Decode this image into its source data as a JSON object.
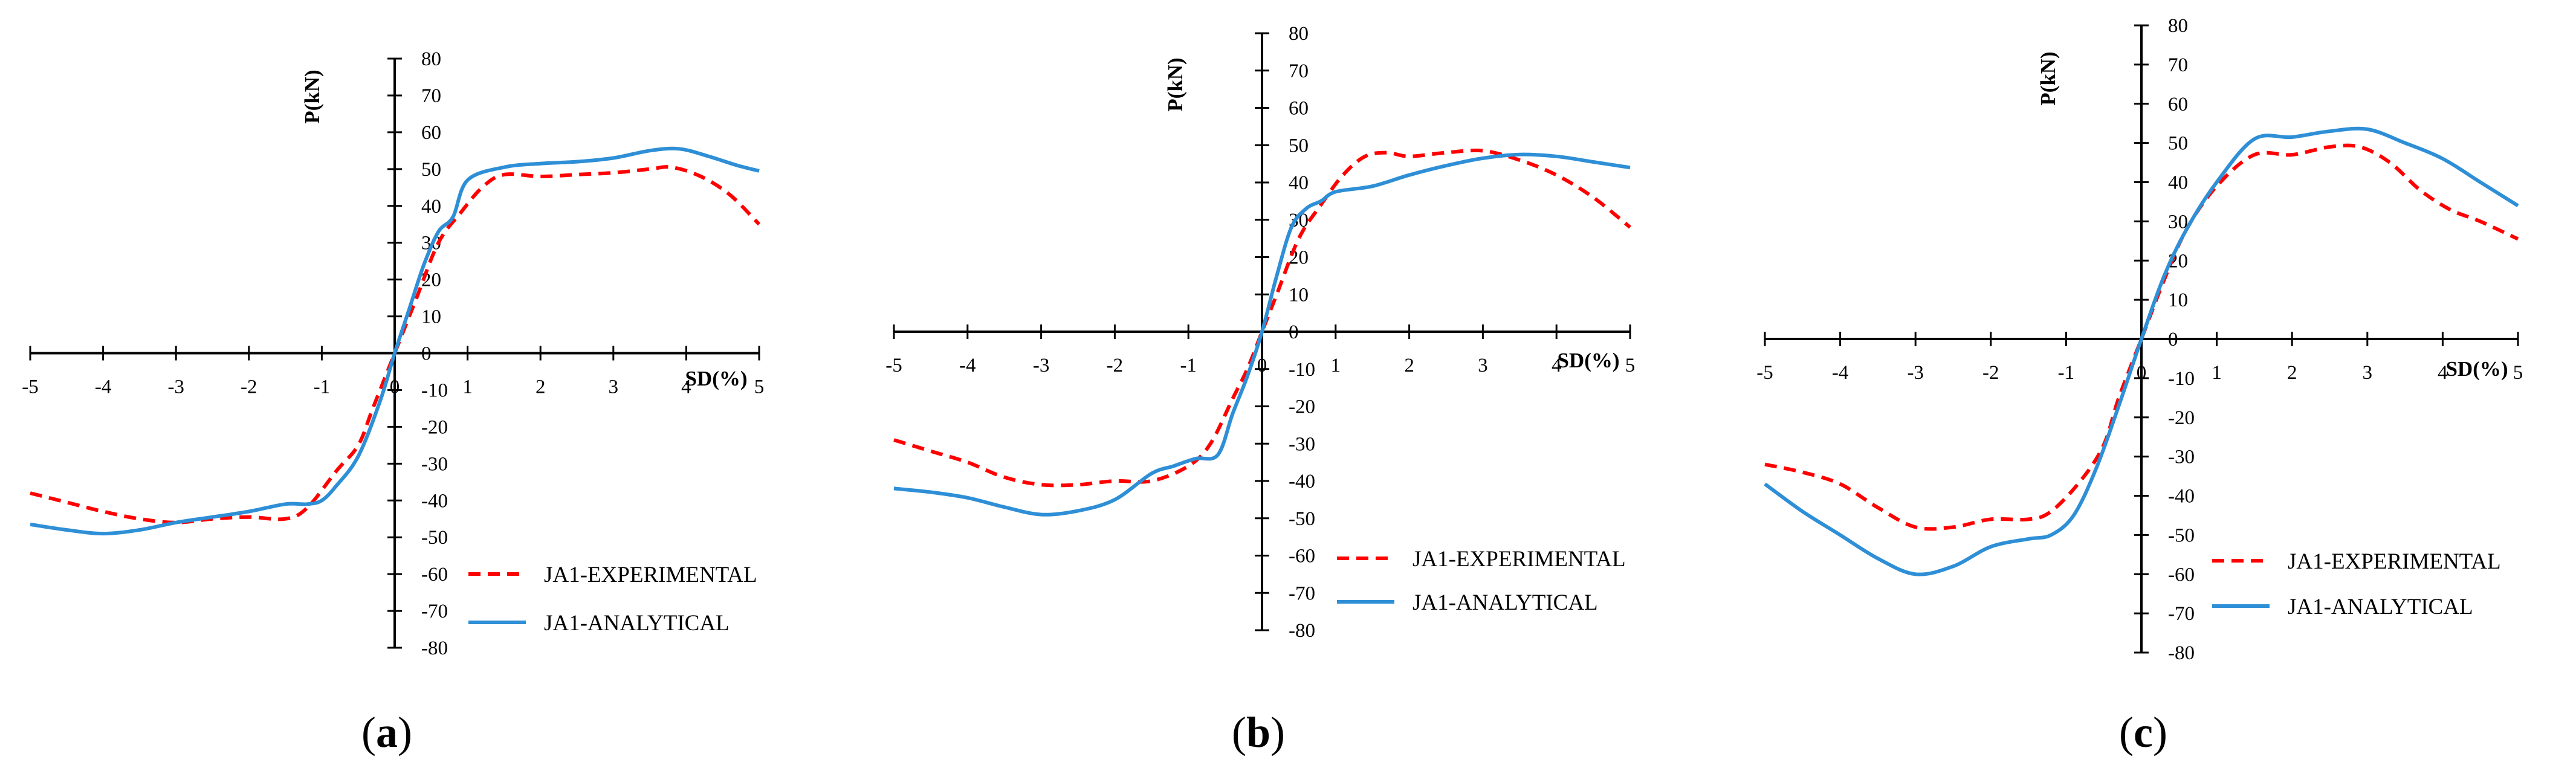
{
  "colors": {
    "experimental": "#ff0000",
    "analytical": "#2e8fd6",
    "axis": "#000000"
  },
  "chart_data": [
    {
      "type": "line",
      "panel": "a",
      "caption": {
        "open": "(",
        "letter": "a",
        "close": ")"
      },
      "xlabel": "SD(%)",
      "ylabel": "P(kN)",
      "xlim": [
        -5,
        5
      ],
      "ylim": [
        -80,
        80
      ],
      "xticks": [
        -5,
        -4,
        -3,
        -2,
        -1,
        0,
        1,
        2,
        3,
        4,
        5
      ],
      "yticks": [
        -80,
        -70,
        -60,
        -50,
        -40,
        -30,
        -20,
        -10,
        0,
        10,
        20,
        30,
        40,
        50,
        60,
        70,
        80
      ],
      "series": [
        {
          "name": "JA1-EXPERIMENTAL",
          "style": "dashed",
          "x": [
            -5,
            -4.5,
            -4,
            -3.5,
            -3,
            -2.5,
            -2,
            -1.5,
            -1.2,
            -0.8,
            -0.5,
            -0.3,
            0,
            0.3,
            0.6,
            0.9,
            1.2,
            1.5,
            2,
            2.5,
            3,
            3.5,
            3.8,
            4.2,
            4.6,
            5
          ],
          "y": [
            -38,
            -40.5,
            -43,
            -45,
            -46,
            -45,
            -44.5,
            -45,
            -42,
            -32,
            -25,
            -15,
            0,
            15,
            30,
            38,
            45,
            48.5,
            48,
            48.5,
            49,
            50,
            50.5,
            48,
            43,
            35
          ]
        },
        {
          "name": "JA1-ANALYTICAL",
          "style": "solid",
          "x": [
            -5,
            -4.5,
            -4,
            -3.5,
            -3,
            -2.5,
            -2,
            -1.5,
            -1.2,
            -1,
            -0.8,
            -0.5,
            -0.2,
            0,
            0.2,
            0.4,
            0.6,
            0.8,
            1,
            1.5,
            2,
            2.5,
            3,
            3.5,
            3.9,
            4.3,
            4.7,
            5
          ],
          "y": [
            -46.5,
            -48,
            -49,
            -48,
            -46,
            -44.5,
            -43,
            -41,
            -41,
            -40,
            -36,
            -28,
            -13,
            0,
            12,
            24,
            33,
            37,
            47,
            50.5,
            51.5,
            52,
            53,
            55,
            55.5,
            53.5,
            51,
            49.5
          ]
        }
      ]
    },
    {
      "type": "line",
      "panel": "b",
      "caption": {
        "open": "(",
        "letter": "b",
        "close": ")"
      },
      "xlabel": "SD(%)",
      "ylabel": "P(kN)",
      "xlim": [
        -5,
        5
      ],
      "ylim": [
        -80,
        80
      ],
      "xticks": [
        -5,
        -4,
        -3,
        -2,
        -1,
        0,
        1,
        2,
        3,
        4,
        5
      ],
      "yticks": [
        -80,
        -70,
        -60,
        -50,
        -40,
        -30,
        -20,
        -10,
        0,
        10,
        20,
        30,
        40,
        50,
        60,
        70,
        80
      ],
      "series": [
        {
          "name": "JA1-EXPERIMENTAL",
          "style": "dashed",
          "x": [
            -5,
            -4.5,
            -4,
            -3.5,
            -3,
            -2.5,
            -2,
            -1.5,
            -1,
            -0.7,
            -0.4,
            -0.2,
            0,
            0.2,
            0.5,
            0.8,
            1.1,
            1.4,
            1.7,
            2,
            2.5,
            3,
            3.5,
            4,
            4.5,
            5
          ],
          "y": [
            -29,
            -32,
            -35,
            -39,
            -41,
            -41,
            -40,
            -40,
            -36,
            -30,
            -18,
            -10,
            0,
            10,
            25,
            34,
            42,
            47,
            48,
            47,
            48,
            48.5,
            46,
            42,
            36,
            28
          ]
        },
        {
          "name": "JA1-ANALYTICAL",
          "style": "solid",
          "x": [
            -5,
            -4.5,
            -4,
            -3.5,
            -3,
            -2.5,
            -2,
            -1.5,
            -1.2,
            -0.9,
            -0.6,
            -0.4,
            -0.2,
            0,
            0.2,
            0.4,
            0.6,
            0.8,
            1.0,
            1.5,
            2,
            2.5,
            3,
            3.5,
            4,
            4.5,
            5
          ],
          "y": [
            -42,
            -43,
            -44.5,
            -47,
            -49,
            -48,
            -45,
            -38,
            -36,
            -34,
            -33,
            -22,
            -12,
            0,
            15,
            28,
            33,
            35,
            37.5,
            39,
            42,
            44.5,
            46.5,
            47.5,
            47,
            45.5,
            44
          ]
        }
      ]
    },
    {
      "type": "line",
      "panel": "c",
      "caption": {
        "open": "(",
        "letter": "c",
        "close": ")"
      },
      "xlabel": "SD(%)",
      "ylabel": "P(kN)",
      "xlim": [
        -5,
        5
      ],
      "ylim": [
        -80,
        80
      ],
      "xticks": [
        -5,
        -4,
        -3,
        -2,
        -1,
        0,
        1,
        2,
        3,
        4,
        5
      ],
      "yticks": [
        -80,
        -70,
        -60,
        -50,
        -40,
        -30,
        -20,
        -10,
        0,
        10,
        20,
        30,
        40,
        50,
        60,
        70,
        80
      ],
      "series": [
        {
          "name": "JA1-EXPERIMENTAL",
          "style": "dashed",
          "x": [
            -5,
            -4.5,
            -4,
            -3.5,
            -3,
            -2.5,
            -2,
            -1.5,
            -1.2,
            -0.8,
            -0.5,
            -0.3,
            0,
            0.3,
            0.6,
            1,
            1.5,
            2,
            2.5,
            2.9,
            3.3,
            3.7,
            4.1,
            4.5,
            5
          ],
          "y": [
            -32,
            -34,
            -37,
            -43,
            -48,
            -48,
            -46,
            -46,
            -44,
            -36,
            -27,
            -15,
            0,
            15,
            28,
            39,
            47,
            47,
            49,
            49,
            45,
            38,
            33,
            30,
            25.5
          ]
        },
        {
          "name": "JA1-ANALYTICAL",
          "style": "solid",
          "x": [
            -5,
            -4.5,
            -4,
            -3.5,
            -3,
            -2.5,
            -2,
            -1.5,
            -1.2,
            -0.9,
            -0.6,
            -0.3,
            0,
            0.3,
            0.6,
            1,
            1.5,
            2,
            2.5,
            3,
            3.5,
            4,
            4.5,
            5
          ],
          "y": [
            -37,
            -44,
            -50,
            -56,
            -60,
            -58,
            -53,
            -51,
            -50,
            -45,
            -33,
            -17,
            0,
            16,
            28,
            40,
            51,
            51.5,
            53,
            53.5,
            50,
            46,
            40,
            34
          ]
        }
      ]
    }
  ]
}
